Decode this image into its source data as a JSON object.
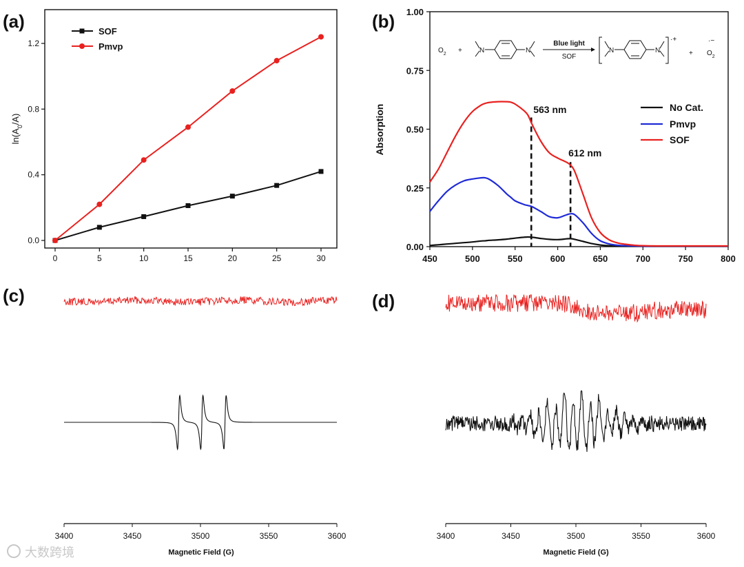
{
  "figure": {
    "panel_labels": [
      "(a)",
      "(b)",
      "(c)",
      "(d)"
    ],
    "watermark": "大数跨境",
    "colors": {
      "red": "#e8211f",
      "black": "#111111",
      "blue": "#1f2bd6",
      "axis": "#111111"
    }
  },
  "chart_data": [
    {
      "id": "a",
      "type": "line",
      "xlabel": "",
      "ylabel": "ln(A0/A)",
      "xlim": [
        0,
        30
      ],
      "ylim": [
        -0.05,
        1.4
      ],
      "x_ticks": [
        0,
        5,
        10,
        15,
        20,
        25,
        30
      ],
      "x_tick_labels": [
        "0",
        "5",
        "10",
        "15",
        "20",
        "25",
        "30"
      ],
      "y_ticks": [
        0,
        0.4,
        0.8,
        1.2
      ],
      "y_tick_labels": [
        "0.0",
        "0.4",
        "0.8",
        "1.2"
      ],
      "legend_position": "top-left",
      "x": [
        0,
        5,
        10,
        15,
        20,
        25,
        30
      ],
      "series": [
        {
          "name": "SOF",
          "color": "#111111",
          "marker": "square",
          "values": [
            0.0,
            0.08,
            0.145,
            0.212,
            0.27,
            0.335,
            0.42
          ]
        },
        {
          "name": "Pmvp",
          "color": "#e8211f",
          "marker": "circle",
          "values": [
            0.0,
            0.22,
            0.49,
            0.69,
            0.91,
            1.095,
            1.24
          ]
        }
      ]
    },
    {
      "id": "b",
      "type": "line",
      "xlabel": "",
      "ylabel": "Absorption",
      "xlim": [
        450,
        800
      ],
      "ylim": [
        0,
        1.0
      ],
      "x_ticks": [
        450,
        500,
        550,
        600,
        650,
        700,
        750,
        800
      ],
      "x_tick_labels": [
        "450",
        "500",
        "550",
        "600",
        "650",
        "700",
        "750",
        "800"
      ],
      "y_ticks": [
        0,
        0.25,
        0.5,
        0.75,
        1.0
      ],
      "y_tick_labels": [
        "0.00",
        "0.25",
        "0.50",
        "0.75",
        "1.00"
      ],
      "legend_position": "right",
      "x": [
        450,
        460,
        470,
        480,
        490,
        500,
        510,
        515,
        520,
        530,
        540,
        545,
        550,
        560,
        565,
        570,
        580,
        590,
        600,
        610,
        615,
        620,
        630,
        640,
        650,
        660,
        670,
        680,
        690,
        700,
        720,
        750,
        800
      ],
      "series": [
        {
          "name": "No Cat.",
          "color": "#111111",
          "values": [
            0.005,
            0.008,
            0.011,
            0.014,
            0.017,
            0.02,
            0.024,
            0.025,
            0.027,
            0.029,
            0.032,
            0.034,
            0.036,
            0.04,
            0.041,
            0.04,
            0.035,
            0.031,
            0.03,
            0.033,
            0.034,
            0.031,
            0.022,
            0.013,
            0.007,
            0.004,
            0.003,
            0.002,
            0.002,
            0.002,
            0.002,
            0.002,
            0.002
          ]
        },
        {
          "name": "Pmvp",
          "color": "#1f2bd6",
          "values": [
            0.15,
            0.195,
            0.235,
            0.262,
            0.28,
            0.288,
            0.293,
            0.293,
            0.286,
            0.26,
            0.225,
            0.21,
            0.195,
            0.18,
            0.175,
            0.17,
            0.15,
            0.128,
            0.123,
            0.135,
            0.14,
            0.136,
            0.1,
            0.055,
            0.025,
            0.012,
            0.006,
            0.004,
            0.003,
            0.002,
            0.002,
            0.002,
            0.002
          ]
        },
        {
          "name": "SOF",
          "color": "#e8211f",
          "values": [
            0.275,
            0.33,
            0.4,
            0.47,
            0.53,
            0.575,
            0.602,
            0.61,
            0.614,
            0.617,
            0.617,
            0.615,
            0.607,
            0.58,
            0.56,
            0.52,
            0.45,
            0.4,
            0.377,
            0.36,
            0.347,
            0.32,
            0.22,
            0.12,
            0.06,
            0.03,
            0.016,
            0.01,
            0.006,
            0.004,
            0.003,
            0.003,
            0.003
          ]
        }
      ],
      "markers": [
        {
          "x": 569,
          "y": 0.55,
          "label": "563 nm"
        },
        {
          "x": 615,
          "y": 0.36,
          "label": "612 nm"
        }
      ],
      "scheme": {
        "reactant": "O2",
        "plus": "+",
        "arrow_top": "Blue light",
        "arrow_bottom": "SOF",
        "charge": "·+",
        "product": "O2",
        "product_charge": "·−"
      }
    },
    {
      "id": "c",
      "type": "line",
      "xlabel": "Magnetic Field (G)",
      "xlim": [
        3400,
        3600
      ],
      "x_ticks": [
        3400,
        3450,
        3500,
        3550,
        3600
      ],
      "x_tick_labels": [
        "3400",
        "3450",
        "3500",
        "3550",
        "3600"
      ],
      "series": [
        {
          "name": "red trace",
          "color": "#e8211f",
          "kind": "noise"
        },
        {
          "name": "black trace",
          "color": "#111111",
          "kind": "triplet",
          "centers": [
            3484,
            3501,
            3518
          ]
        }
      ]
    },
    {
      "id": "d",
      "type": "line",
      "xlabel": "Magnetic Field (G)",
      "xlim": [
        3400,
        3600
      ],
      "x_ticks": [
        3400,
        3450,
        3500,
        3550,
        3600
      ],
      "x_tick_labels": [
        "3400",
        "3450",
        "3500",
        "3550",
        "3600"
      ],
      "series": [
        {
          "name": "red trace",
          "color": "#e8211f",
          "kind": "noise"
        },
        {
          "name": "black trace",
          "color": "#111111",
          "kind": "multiplet",
          "center": 3500
        }
      ]
    }
  ]
}
